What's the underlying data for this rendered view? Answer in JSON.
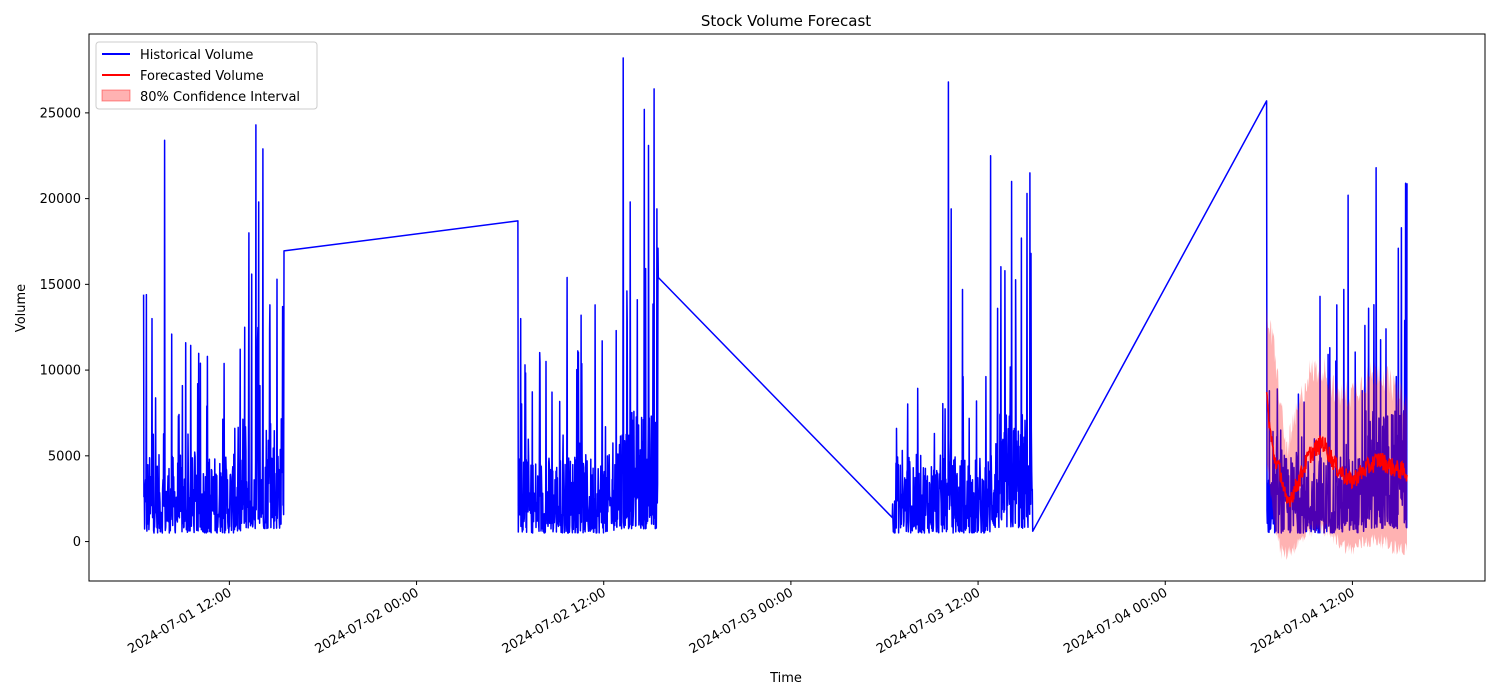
{
  "chart_data": {
    "type": "line",
    "title": "Stock Volume Forecast",
    "xlabel": "Time",
    "ylabel": "Volume",
    "xlim": [
      "2024-07-01 03:00",
      "2024-07-04 20:30"
    ],
    "ylim": [
      -2300,
      29600
    ],
    "x_ticks": [
      "2024-07-01 12:00",
      "2024-07-02 00:00",
      "2024-07-02 12:00",
      "2024-07-03 00:00",
      "2024-07-03 12:00",
      "2024-07-04 00:00",
      "2024-07-04 12:00"
    ],
    "y_ticks": [
      0,
      5000,
      10000,
      15000,
      20000,
      25000
    ],
    "grid": false,
    "legend_position": "top-left",
    "series": [
      {
        "name": "Historical Volume",
        "color": "#0000ff",
        "sessions": [
          {
            "start": "2024-07-01 06:30",
            "end": "2024-07-01 15:30",
            "first": 14400,
            "last": 16950,
            "peaks": [
              [
                0.02,
                14400
              ],
              [
                0.06,
                13000
              ],
              [
                0.15,
                23400
              ],
              [
                0.2,
                12100
              ],
              [
                0.3,
                11600
              ],
              [
                0.45,
                7900
              ],
              [
                0.55,
                4000
              ],
              [
                0.65,
                6600
              ],
              [
                0.72,
                12500
              ],
              [
                0.75,
                18000
              ],
              [
                0.77,
                15600
              ],
              [
                0.8,
                24300
              ],
              [
                0.82,
                19800
              ],
              [
                0.85,
                22900
              ],
              [
                0.9,
                13800
              ],
              [
                0.95,
                15300
              ],
              [
                0.99,
                13700
              ]
            ]
          },
          {
            "start": "2024-07-02 06:30",
            "end": "2024-07-02 15:30",
            "first": 18700,
            "last": 15400,
            "peaks": [
              [
                0.02,
                13000
              ],
              [
                0.05,
                10300
              ],
              [
                0.2,
                10500
              ],
              [
                0.35,
                15400
              ],
              [
                0.45,
                13200
              ],
              [
                0.55,
                13800
              ],
              [
                0.6,
                11700
              ],
              [
                0.7,
                12300
              ],
              [
                0.75,
                28200
              ],
              [
                0.8,
                19800
              ],
              [
                0.85,
                14100
              ],
              [
                0.9,
                25200
              ],
              [
                0.93,
                23100
              ],
              [
                0.97,
                26400
              ],
              [
                0.99,
                19400
              ]
            ]
          },
          {
            "start": "2024-07-03 06:30",
            "end": "2024-07-03 15:30",
            "first": 1400,
            "last": 600,
            "peaks": [
              [
                0.03,
                6600
              ],
              [
                0.15,
                4300
              ],
              [
                0.3,
                6300
              ],
              [
                0.4,
                26800
              ],
              [
                0.42,
                19400
              ],
              [
                0.5,
                14700
              ],
              [
                0.6,
                8200
              ],
              [
                0.7,
                22500
              ],
              [
                0.75,
                13600
              ],
              [
                0.85,
                21000
              ],
              [
                0.88,
                12300
              ],
              [
                0.92,
                17700
              ],
              [
                0.96,
                20300
              ],
              [
                0.98,
                21500
              ]
            ]
          },
          {
            "start": "2024-07-04 06:30",
            "end": "2024-07-04 15:30",
            "first": 25700,
            "last": 20900,
            "peaks": [
              [
                0.02,
                8800
              ],
              [
                0.1,
                6500
              ],
              [
                0.25,
                6100
              ],
              [
                0.38,
                14300
              ],
              [
                0.45,
                11300
              ],
              [
                0.5,
                13800
              ],
              [
                0.55,
                14700
              ],
              [
                0.58,
                20200
              ],
              [
                0.7,
                12600
              ],
              [
                0.78,
                21800
              ],
              [
                0.85,
                12400
              ],
              [
                0.96,
                18300
              ],
              [
                0.99,
                20900
              ]
            ]
          }
        ]
      },
      {
        "name": "Forecasted Volume",
        "color": "#ff0000",
        "start": "2024-07-04 06:30",
        "end": "2024-07-04 15:30",
        "values": [
          [
            0,
            8500
          ],
          [
            0.02,
            6800
          ],
          [
            0.05,
            5000
          ],
          [
            0.1,
            4000
          ],
          [
            0.14,
            2200
          ],
          [
            0.2,
            3000
          ],
          [
            0.3,
            5000
          ],
          [
            0.4,
            5800
          ],
          [
            0.5,
            4300
          ],
          [
            0.6,
            3500
          ],
          [
            0.7,
            4200
          ],
          [
            0.8,
            4800
          ],
          [
            0.9,
            4300
          ],
          [
            1,
            4000
          ]
        ]
      },
      {
        "name": "80% Confidence Interval",
        "color": "#ff0000",
        "fill_opacity": 0.3,
        "start": "2024-07-04 06:30",
        "end": "2024-07-04 15:30",
        "upper": [
          [
            0,
            13800
          ],
          [
            0.02,
            12300
          ],
          [
            0.05,
            11500
          ],
          [
            0.1,
            8000
          ],
          [
            0.14,
            5200
          ],
          [
            0.2,
            7000
          ],
          [
            0.3,
            9800
          ],
          [
            0.4,
            10200
          ],
          [
            0.5,
            8600
          ],
          [
            0.6,
            8600
          ],
          [
            0.7,
            9400
          ],
          [
            0.8,
            10000
          ],
          [
            0.9,
            9000
          ],
          [
            1,
            7900
          ]
        ],
        "lower": [
          [
            0,
            4600
          ],
          [
            0.02,
            3500
          ],
          [
            0.05,
            1500
          ],
          [
            0.1,
            -600
          ],
          [
            0.14,
            -700
          ],
          [
            0.2,
            -300
          ],
          [
            0.3,
            500
          ],
          [
            0.4,
            800
          ],
          [
            0.5,
            100
          ],
          [
            0.6,
            -500
          ],
          [
            0.7,
            0
          ],
          [
            0.8,
            100
          ],
          [
            0.9,
            -300
          ],
          [
            1,
            -500
          ]
        ]
      }
    ]
  }
}
